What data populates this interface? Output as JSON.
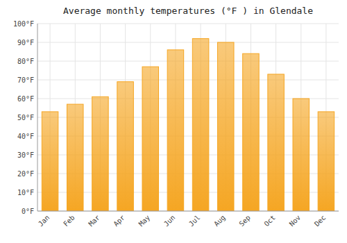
{
  "chart_data": {
    "type": "bar",
    "title": "Average monthly temperatures (°F ) in Glendale",
    "categories": [
      "Jan",
      "Feb",
      "Mar",
      "Apr",
      "May",
      "Jun",
      "Jul",
      "Aug",
      "Sep",
      "Oct",
      "Nov",
      "Dec"
    ],
    "values": [
      53,
      57,
      61,
      69,
      77,
      86,
      92,
      90,
      84,
      73,
      60,
      53
    ],
    "color": "#F5A623",
    "ylim": [
      0,
      100
    ],
    "yticks": [
      {
        "value": 0,
        "label": "0°F"
      },
      {
        "value": 10,
        "label": "10°F"
      },
      {
        "value": 20,
        "label": "20°F"
      },
      {
        "value": 30,
        "label": "30°F"
      },
      {
        "value": 40,
        "label": "40°F"
      },
      {
        "value": 50,
        "label": "50°F"
      },
      {
        "value": 60,
        "label": "60°F"
      },
      {
        "value": 70,
        "label": "70°F"
      },
      {
        "value": 80,
        "label": "80°F"
      },
      {
        "value": 90,
        "label": "90°F"
      },
      {
        "value": 100,
        "label": "100°F"
      }
    ],
    "grid": true
  }
}
